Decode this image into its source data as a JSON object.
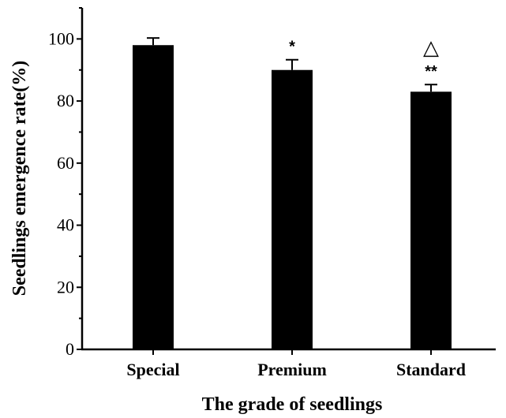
{
  "chart_data": {
    "type": "bar",
    "categories": [
      "Special",
      "Premium",
      "Standard"
    ],
    "values": [
      98,
      90,
      83
    ],
    "errors": [
      2.3,
      3.3,
      2.3
    ],
    "annotations": [
      "",
      "*",
      "**"
    ],
    "extra_marks": [
      "",
      "",
      "△"
    ],
    "xlabel": "The grade of seedlings",
    "ylabel": "Seedlings emergence rate(%)",
    "ylim": [
      0,
      110
    ],
    "yticks": [
      0,
      20,
      40,
      60,
      80,
      100
    ],
    "grid": false,
    "bar_color": "#000000"
  }
}
